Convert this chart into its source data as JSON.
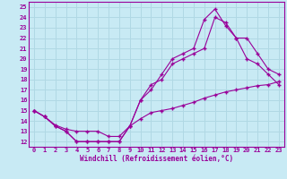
{
  "background_color": "#c8eaf4",
  "grid_color": "#b0d8e4",
  "line_color": "#990099",
  "marker": "+",
  "xlabel": "Windchill (Refroidissement éolien,°C)",
  "xlim": [
    -0.5,
    23.5
  ],
  "ylim": [
    11.5,
    25.5
  ],
  "xticks": [
    0,
    1,
    2,
    3,
    4,
    5,
    6,
    7,
    8,
    9,
    10,
    11,
    12,
    13,
    14,
    15,
    16,
    17,
    18,
    19,
    20,
    21,
    22,
    23
  ],
  "yticks": [
    12,
    13,
    14,
    15,
    16,
    17,
    18,
    19,
    20,
    21,
    22,
    23,
    24,
    25
  ],
  "line1_x": [
    0,
    1,
    2,
    3,
    4,
    5,
    6,
    7,
    8,
    9,
    10,
    11,
    12,
    13,
    14,
    15,
    16,
    17,
    18,
    19,
    20,
    21,
    22,
    23
  ],
  "line1_y": [
    15,
    14.4,
    13.5,
    13.0,
    12.0,
    12.0,
    12.0,
    12.0,
    12.0,
    13.5,
    16.0,
    17.5,
    18.0,
    19.5,
    20.0,
    20.5,
    21.0,
    24.0,
    23.5,
    22.0,
    20.0,
    19.5,
    18.5,
    17.5
  ],
  "line2_x": [
    0,
    1,
    2,
    3,
    4,
    5,
    6,
    7,
    8,
    9,
    10,
    11,
    12,
    13,
    14,
    15,
    16,
    17,
    18,
    19,
    20,
    21,
    22,
    23
  ],
  "line2_y": [
    15,
    14.4,
    13.5,
    13.0,
    12.0,
    12.0,
    12.0,
    12.0,
    12.0,
    13.5,
    16.0,
    17.0,
    18.5,
    20.0,
    20.5,
    21.0,
    23.8,
    24.8,
    23.2,
    22.0,
    22.0,
    20.5,
    19.0,
    18.5
  ],
  "line3_x": [
    0,
    1,
    2,
    3,
    4,
    5,
    6,
    7,
    8,
    9,
    10,
    11,
    12,
    13,
    14,
    15,
    16,
    17,
    18,
    19,
    20,
    21,
    22,
    23
  ],
  "line3_y": [
    15.0,
    14.4,
    13.6,
    13.2,
    13.0,
    13.0,
    13.0,
    12.5,
    12.5,
    13.5,
    14.2,
    14.8,
    15.0,
    15.2,
    15.5,
    15.8,
    16.2,
    16.5,
    16.8,
    17.0,
    17.2,
    17.4,
    17.5,
    17.8
  ]
}
